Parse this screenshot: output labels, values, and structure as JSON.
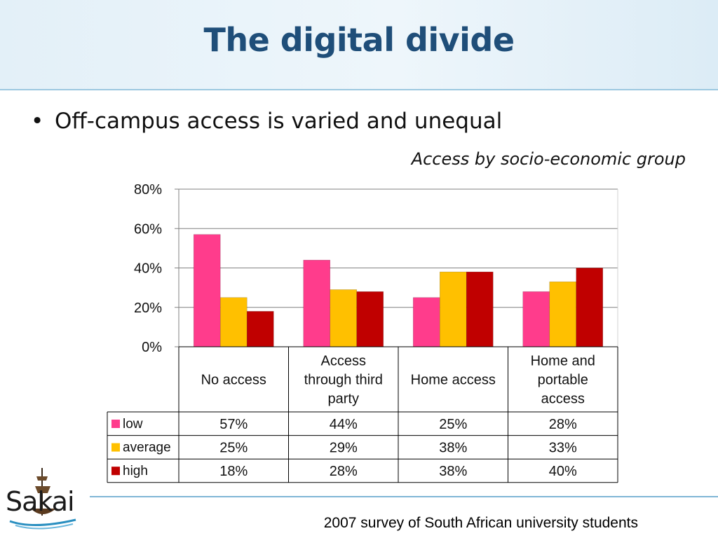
{
  "slide": {
    "title": "The digital divide",
    "bullet": "Off-campus access is varied and unequal",
    "footer": "2007 survey of South African university students",
    "logo_text": "Sakai"
  },
  "chart_data": {
    "type": "bar",
    "title": "Access by socio-economic group",
    "categories": [
      "No access",
      "Access through third party",
      "Home access",
      "Home and portable access"
    ],
    "category_lines": [
      [
        "No access"
      ],
      [
        "Access",
        "through third",
        "party"
      ],
      [
        "Home access"
      ],
      [
        "Home and",
        "portable",
        "access"
      ]
    ],
    "series": [
      {
        "name": "low",
        "values": [
          57,
          44,
          25,
          28
        ],
        "color": "#ff3c8c"
      },
      {
        "name": "average",
        "values": [
          25,
          29,
          38,
          33
        ],
        "color": "#ffc000"
      },
      {
        "name": "high",
        "values": [
          18,
          28,
          38,
          40
        ],
        "color": "#c00000"
      }
    ],
    "table_values": [
      [
        "57%",
        "44%",
        "25%",
        "28%"
      ],
      [
        "25%",
        "29%",
        "38%",
        "33%"
      ],
      [
        "18%",
        "28%",
        "38%",
        "40%"
      ]
    ],
    "ylim": [
      0,
      80
    ],
    "yticks": [
      0,
      20,
      40,
      60,
      80
    ],
    "ytick_labels": [
      "0%",
      "20%",
      "40%",
      "60%",
      "80%"
    ],
    "grid": true,
    "legend": "data-table"
  }
}
